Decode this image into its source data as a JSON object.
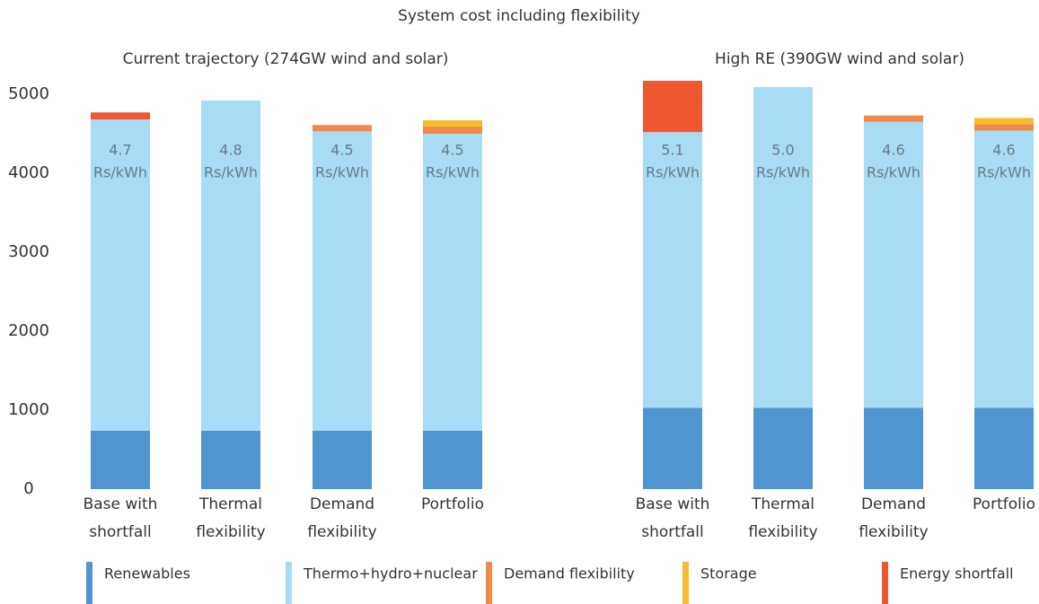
{
  "title": "System cost including flexibility",
  "chart_data": [
    {
      "type": "bar",
      "stacked": true,
      "title": "Current trajectory (274GW wind and solar)",
      "categories": [
        "Base with shortfall",
        "Thermal flexibility",
        "Demand flexibility",
        "Portfolio"
      ],
      "series": [
        {
          "name": "Renewables",
          "color": "#4f96d0",
          "values": [
            740,
            740,
            740,
            740
          ]
        },
        {
          "name": "Thermo+hydro+nuclear",
          "color": "#a8dcf5",
          "values": [
            3940,
            4180,
            3790,
            3760
          ]
        },
        {
          "name": "Demand flexibility",
          "color": "#ef8a4a",
          "values": [
            0,
            0,
            80,
            90
          ]
        },
        {
          "name": "Storage",
          "color": "#f8bb2c",
          "values": [
            0,
            0,
            0,
            80
          ]
        },
        {
          "name": "Energy shortfall",
          "color": "#ef5730",
          "values": [
            90,
            0,
            0,
            0
          ]
        }
      ],
      "cost_labels": [
        "4.7",
        "4.8",
        "4.5",
        "4.5"
      ],
      "cost_unit": "Rs/kWh",
      "ylim": [
        0,
        5500
      ],
      "yticks": [
        0,
        1000,
        2000,
        3000,
        4000,
        5000
      ]
    },
    {
      "type": "bar",
      "stacked": true,
      "title": "High RE (390GW wind and solar)",
      "categories": [
        "Base with shortfall",
        "Thermal flexibility",
        "Demand flexibility",
        "Portfolio"
      ],
      "series": [
        {
          "name": "Renewables",
          "color": "#4f96d0",
          "values": [
            1030,
            1030,
            1030,
            1030
          ]
        },
        {
          "name": "Thermo+hydro+nuclear",
          "color": "#a8dcf5",
          "values": [
            3490,
            4060,
            3620,
            3510
          ]
        },
        {
          "name": "Demand flexibility",
          "color": "#ef8a4a",
          "values": [
            0,
            0,
            80,
            80
          ]
        },
        {
          "name": "Storage",
          "color": "#f8bb2c",
          "values": [
            0,
            0,
            0,
            80
          ]
        },
        {
          "name": "Energy shortfall",
          "color": "#ef5730",
          "values": [
            650,
            0,
            0,
            0
          ]
        }
      ],
      "cost_labels": [
        "5.1",
        "5.0",
        "4.6",
        "4.6"
      ],
      "cost_unit": "Rs/kWh",
      "ylim": [
        0,
        5500
      ]
    }
  ]
}
